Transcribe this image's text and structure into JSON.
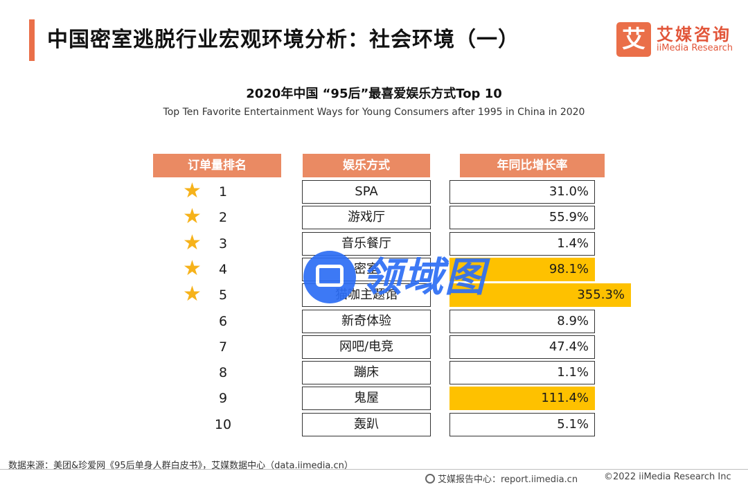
{
  "header": {
    "title": "中国密室逃脱行业宏观环境分析：社会环境（一）",
    "logo_mark": "艾",
    "logo_cn": "艾媒咨询",
    "logo_en": "iiMedia Research"
  },
  "chart_data": {
    "type": "table",
    "title": "2020年中国 “95后”最喜爱娱乐方式Top 10",
    "subtitle": "Top Ten Favorite Entertainment Ways for Young Consumers after 1995 in China in 2020",
    "columns": [
      "订单量排名",
      "娱乐方式",
      "年同比增长率"
    ],
    "rows": [
      {
        "rank": "1",
        "name": "SPA",
        "growth": 31.0,
        "growth_label": "31.0%",
        "star": true,
        "highlight": false
      },
      {
        "rank": "2",
        "name": "游戏厅",
        "growth": 55.9,
        "growth_label": "55.9%",
        "star": true,
        "highlight": false
      },
      {
        "rank": "3",
        "name": "音乐餐厅",
        "growth": 1.4,
        "growth_label": "1.4%",
        "star": true,
        "highlight": false
      },
      {
        "rank": "4",
        "name": "密室",
        "growth": 98.1,
        "growth_label": "98.1%",
        "star": true,
        "highlight": true
      },
      {
        "rank": "5",
        "name": "猫咖主题馆",
        "growth": 355.3,
        "growth_label": "355.3%",
        "star": true,
        "highlight": true
      },
      {
        "rank": "6",
        "name": "新奇体验",
        "growth": 8.9,
        "growth_label": "8.9%",
        "star": false,
        "highlight": false
      },
      {
        "rank": "7",
        "name": "网吧/电竞",
        "growth": 47.4,
        "growth_label": "47.4%",
        "star": false,
        "highlight": false
      },
      {
        "rank": "8",
        "name": "蹦床",
        "growth": 1.1,
        "growth_label": "1.1%",
        "star": false,
        "highlight": false
      },
      {
        "rank": "9",
        "name": "鬼屋",
        "growth": 111.4,
        "growth_label": "111.4%",
        "star": false,
        "highlight": true
      },
      {
        "rank": "10",
        "name": "轰趴",
        "growth": 5.1,
        "growth_label": "5.1%",
        "star": false,
        "highlight": false
      }
    ],
    "colors": {
      "header": "#ea8a63",
      "highlight": "#fec100",
      "star": "#f6b21a",
      "accent": "#ea6f49"
    }
  },
  "watermark": {
    "text": "领域图",
    "icon": "brand-logo-icon"
  },
  "footer": {
    "source": "数据来源：美团&珍爱网《95后单身人群白皮书》，艾媒数据中心（data.iimedia.cn）",
    "report": "艾媒报告中心：report.iimedia.cn",
    "copyright": "©2022  iiMedia Research  Inc",
    "report_icon": "globe-icon"
  }
}
